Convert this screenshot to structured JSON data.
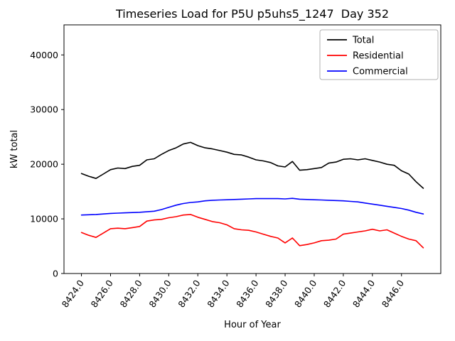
{
  "figure": {
    "title": "Timeseries Load for P5U p5uhs5_1247  Day 352",
    "xlabel": "Hour of Year",
    "ylabel": "kW total"
  },
  "chart_data": {
    "type": "line",
    "title": "Timeseries Load for P5U p5uhs5_1247  Day 352",
    "xlabel": "Hour of Year",
    "ylabel": "kW total",
    "grid": false,
    "legend_position": "upper right",
    "xlim": [
      8422.8,
      8448.7
    ],
    "ylim": [
      0,
      45500
    ],
    "xticks": [
      8424,
      8426,
      8428,
      8430,
      8432,
      8434,
      8436,
      8438,
      8440,
      8442,
      8444,
      8446
    ],
    "xtick_labels": [
      "8424.0",
      "8426.0",
      "8428.0",
      "8430.0",
      "8432.0",
      "8434.0",
      "8436.0",
      "8438.0",
      "8440.0",
      "8442.0",
      "8444.0",
      "8446.0"
    ],
    "yticks": [
      0,
      10000,
      20000,
      30000,
      40000
    ],
    "ytick_labels": [
      "0",
      "10000",
      "20000",
      "30000",
      "40000"
    ],
    "x": [
      8424.0,
      8424.5,
      8425.0,
      8425.5,
      8426.0,
      8426.5,
      8427.0,
      8427.5,
      8428.0,
      8428.5,
      8429.0,
      8429.5,
      8430.0,
      8430.5,
      8431.0,
      8431.5,
      8432.0,
      8432.5,
      8433.0,
      8433.5,
      8434.0,
      8434.5,
      8435.0,
      8435.5,
      8436.0,
      8436.5,
      8437.0,
      8437.5,
      8438.0,
      8438.5,
      8439.0,
      8439.5,
      8440.0,
      8440.5,
      8441.0,
      8441.5,
      8442.0,
      8442.5,
      8443.0,
      8443.5,
      8444.0,
      8444.5,
      8445.0,
      8445.5,
      8446.0,
      8446.5,
      8447.0,
      8447.5
    ],
    "series": [
      {
        "name": "Total",
        "color": "#000000",
        "values": [
          18300,
          17800,
          17400,
          18200,
          19000,
          19300,
          19200,
          19600,
          19800,
          20800,
          21000,
          21800,
          22500,
          23000,
          23700,
          24000,
          23400,
          23000,
          22800,
          22500,
          22200,
          21800,
          21700,
          21300,
          20800,
          20600,
          20300,
          19700,
          19500,
          20500,
          18900,
          19000,
          19200,
          19400,
          20200,
          20400,
          20900,
          21000,
          20800,
          21000,
          20700,
          20400,
          20000,
          19800,
          18800,
          18200,
          16800,
          15600
        ]
      },
      {
        "name": "Residential",
        "color": "#ff0000",
        "values": [
          7500,
          7000,
          6600,
          7400,
          8200,
          8300,
          8200,
          8400,
          8600,
          9600,
          9800,
          9900,
          10200,
          10400,
          10700,
          10800,
          10300,
          9900,
          9500,
          9300,
          8900,
          8200,
          8000,
          7900,
          7600,
          7200,
          6800,
          6500,
          5600,
          6500,
          5100,
          5300,
          5600,
          6000,
          6100,
          6300,
          7200,
          7400,
          7600,
          7800,
          8100,
          7800,
          8000,
          7400,
          6800,
          6300,
          6000,
          4700
        ]
      },
      {
        "name": "Commercial",
        "color": "#0000ff",
        "values": [
          10700,
          10750,
          10800,
          10900,
          11000,
          11050,
          11100,
          11150,
          11200,
          11300,
          11400,
          11700,
          12100,
          12500,
          12800,
          13000,
          13100,
          13300,
          13400,
          13450,
          13500,
          13550,
          13600,
          13650,
          13700,
          13700,
          13700,
          13700,
          13650,
          13750,
          13600,
          13550,
          13500,
          13450,
          13400,
          13350,
          13300,
          13200,
          13100,
          12900,
          12700,
          12500,
          12300,
          12100,
          11900,
          11600,
          11200,
          10900
        ]
      }
    ]
  }
}
